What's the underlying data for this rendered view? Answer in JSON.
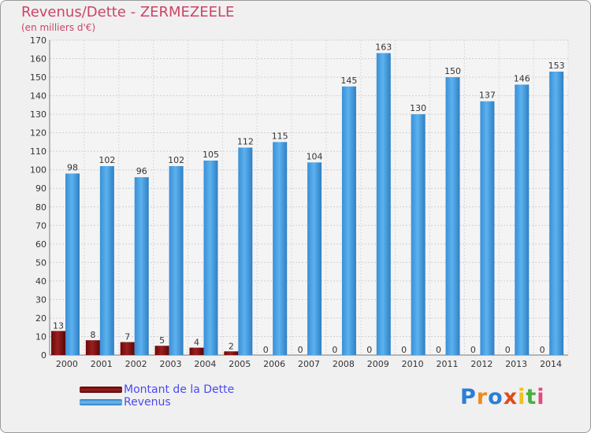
{
  "title": "Revenus/Dette - ZERMEZEELE",
  "subtitle": "(en milliers d'€)",
  "chart_data": {
    "type": "bar",
    "title": "Revenus/Dette - ZERMEZEELE",
    "subtitle": "(en milliers d'€)",
    "categories": [
      "2000",
      "2001",
      "2002",
      "2003",
      "2004",
      "2005",
      "2006",
      "2007",
      "2008",
      "2009",
      "2010",
      "2011",
      "2012",
      "2013",
      "2014"
    ],
    "series": [
      {
        "name": "Montant de la Dette",
        "color": "#7a1010",
        "values": [
          13,
          8,
          7,
          5,
          4,
          2,
          0,
          0,
          0,
          0,
          0,
          0,
          0,
          0,
          0
        ]
      },
      {
        "name": "Revenus",
        "color": "#4aa0e0",
        "values": [
          98,
          102,
          96,
          102,
          105,
          112,
          115,
          104,
          145,
          163,
          130,
          150,
          137,
          146,
          153
        ]
      }
    ],
    "ylim": [
      0,
      170
    ],
    "yticks": [
      0,
      10,
      20,
      30,
      40,
      50,
      60,
      70,
      80,
      90,
      100,
      110,
      120,
      130,
      140,
      150,
      160,
      170
    ],
    "grid": true,
    "legend_position": "bottom-left"
  },
  "legend": {
    "debt_label": "Montant de la Dette",
    "revenue_label": "Revenus"
  },
  "logo": {
    "letters": [
      "P",
      "r",
      "o",
      "x",
      "i",
      "t",
      "i"
    ],
    "colors": [
      "#2a7fd4",
      "#f08a1c",
      "#2a7fd4",
      "#e04a1a",
      "#f0c020",
      "#4ab040",
      "#e04a80"
    ]
  }
}
